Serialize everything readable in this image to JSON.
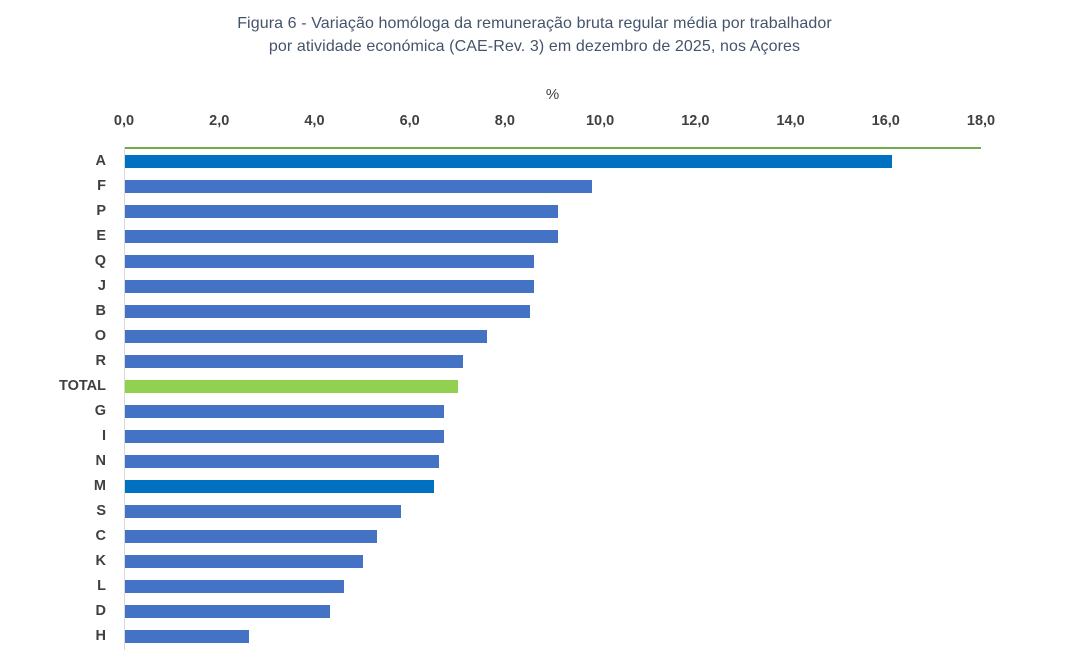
{
  "title": {
    "line1": "Figura 6 - Variação homóloga da remuneração bruta regular média por trabalhador",
    "line2": "por atividade económica (CAE-Rev. 3) em dezembro de 2025, nos Açores"
  },
  "chart_data": {
    "type": "bar",
    "orientation": "horizontal",
    "title": "Figura 6 - Variação homóloga da remuneração bruta regular média por trabalhador por atividade económica (CAE-Rev. 3) em dezembro de 2025, nos Açores",
    "axis_unit_label": "%",
    "xlabel": "%",
    "ylabel": "",
    "xlim": [
      0,
      18
    ],
    "tick_values": [
      0,
      2,
      4,
      6,
      8,
      10,
      12,
      14,
      16,
      18
    ],
    "tick_labels": [
      "0,0",
      "2,0",
      "4,0",
      "6,0",
      "8,0",
      "10,0",
      "12,0",
      "14,0",
      "16,0",
      "18,0"
    ],
    "categories": [
      "A",
      "F",
      "P",
      "E",
      "Q",
      "J",
      "B",
      "O",
      "R",
      "TOTAL",
      "G",
      "I",
      "N",
      "M",
      "S",
      "C",
      "K",
      "L",
      "D",
      "H"
    ],
    "values": [
      16.1,
      9.8,
      9.1,
      9.1,
      8.6,
      8.6,
      8.5,
      7.6,
      7.1,
      7.0,
      6.7,
      6.7,
      6.6,
      6.5,
      5.8,
      5.3,
      5.0,
      4.6,
      4.3,
      2.6
    ],
    "point_colors": [
      "#0070C0",
      "#4472C4",
      "#4472C4",
      "#4472C4",
      "#4472C4",
      "#4472C4",
      "#4472C4",
      "#4472C4",
      "#4472C4",
      "#92D050",
      "#4472C4",
      "#4472C4",
      "#4472C4",
      "#0070C0",
      "#4472C4",
      "#4472C4",
      "#4472C4",
      "#4472C4",
      "#4472C4",
      "#4472C4"
    ],
    "colors": {
      "default_bar": "#4472C4",
      "highlight_bar": "#0070C0",
      "total_bar": "#92D050",
      "top_axis_line": "#70AD47",
      "vertical_axis_line": "#D9D9D9",
      "tick_text": "#404040",
      "category_text": "#404040",
      "title_text": "#44546A"
    },
    "grid": false,
    "legend": false
  }
}
